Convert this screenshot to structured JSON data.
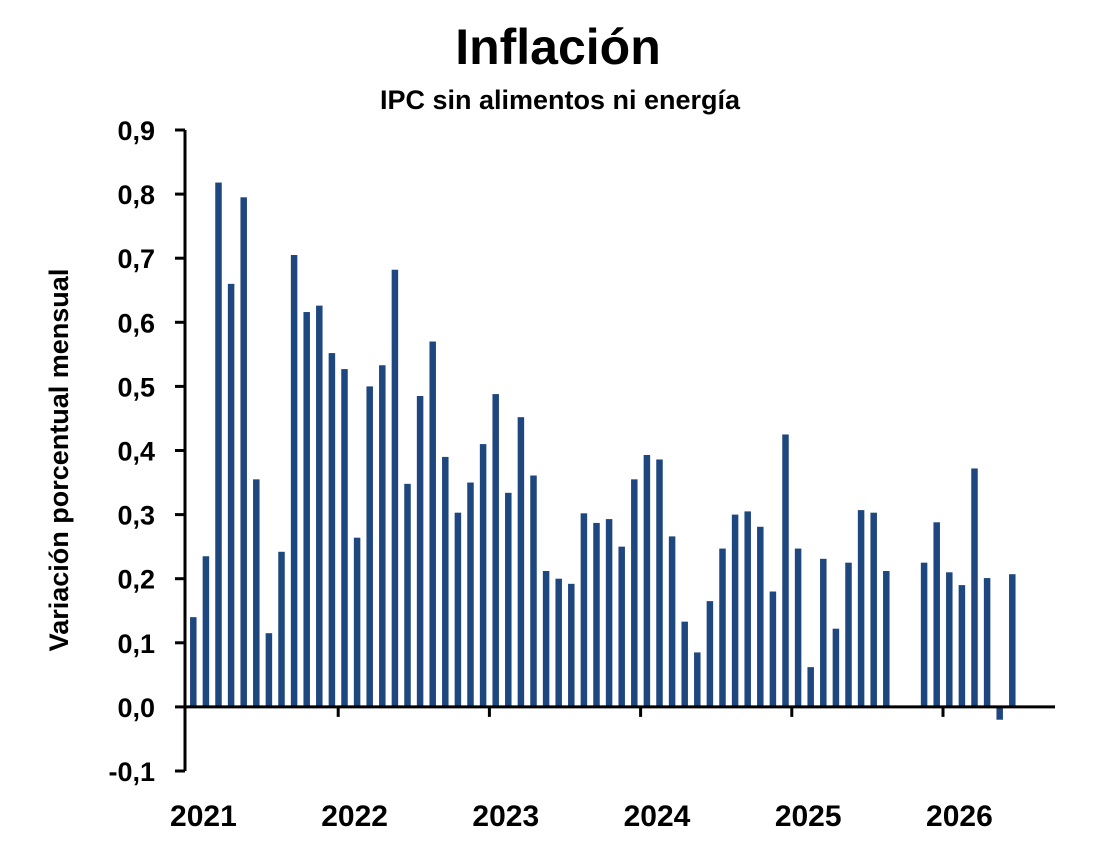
{
  "chart_data": {
    "type": "bar",
    "title": "Inflación",
    "subtitle": "IPC sin alimentos ni energía",
    "xlabel": "",
    "ylabel": "Variación porcentual mensual",
    "ylim": [
      -0.1,
      0.9
    ],
    "yticks": [
      "-0,1",
      "0,0",
      "0,1",
      "0,2",
      "0,3",
      "0,4",
      "0,5",
      "0,6",
      "0,7",
      "0,8",
      "0,9"
    ],
    "ytick_values": [
      -0.1,
      0,
      0.1,
      0.2,
      0.3,
      0.4,
      0.5,
      0.6,
      0.7,
      0.8,
      0.9
    ],
    "xtick_labels": [
      "2021",
      "2022",
      "2023",
      "2024",
      "2025",
      "2026"
    ],
    "grid": false,
    "bar_color": "#1f477f",
    "start_month": "2021-01",
    "series": [
      {
        "values": [
          0.14,
          0.235,
          0.818,
          0.66,
          0.795,
          0.355,
          0.115,
          0.242,
          0.705,
          0.616,
          0.626,
          0.552,
          0.527,
          0.264,
          0.5,
          0.533,
          0.682,
          0.348,
          0.485,
          0.57,
          0.39,
          0.303,
          0.35,
          0.41,
          0.488,
          0.334,
          0.452,
          0.361,
          0.212,
          0.2,
          0.192,
          0.302,
          0.287,
          0.293,
          0.25,
          0.355,
          0.393,
          0.386,
          0.266,
          0.133,
          0.085,
          0.165,
          0.247,
          0.3,
          0.305,
          0.281,
          0.18,
          0.425,
          0.247,
          0.062,
          0.231,
          0.122,
          0.225,
          0.307,
          0.303,
          0.212,
          null,
          null,
          0.225,
          0.288,
          0.21,
          0.19,
          0.372,
          0.201,
          -0.02,
          0.207
        ]
      }
    ]
  }
}
